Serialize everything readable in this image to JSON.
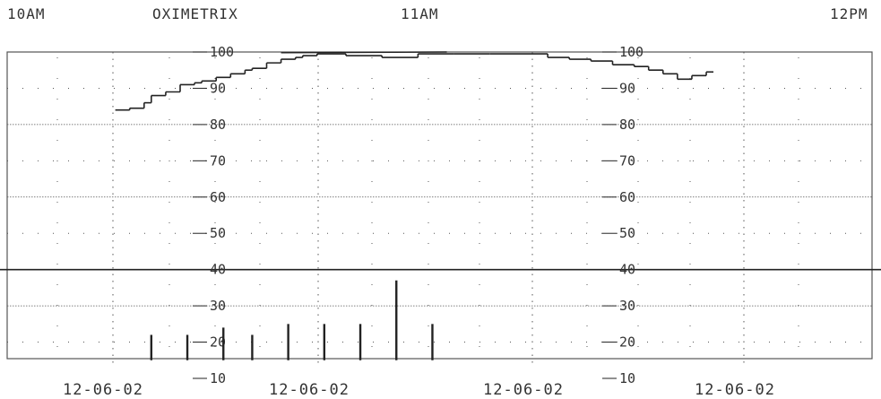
{
  "header": {
    "time_start": "10AM",
    "title": "OXIMETRIX",
    "time_mid": "11AM",
    "time_end": "12PM"
  },
  "dates": [
    "12-06-02",
    "12-06-02",
    "12-06-02",
    "12-06-02"
  ],
  "colors": {
    "line": "#222222",
    "grid": "#555555",
    "background": "#ffffff"
  },
  "chart_data": {
    "type": "line",
    "title": "OXIMETRIX",
    "x_labels_top": [
      "10AM",
      "11AM",
      "12PM"
    ],
    "x_labels_bottom": [
      "12-06-02",
      "12-06-02",
      "12-06-02",
      "12-06-02"
    ],
    "xlim_minutes": [
      0,
      120
    ],
    "yticks": [
      10,
      20,
      30,
      40,
      50,
      60,
      70,
      80,
      90,
      100
    ],
    "ylim": [
      10,
      100
    ],
    "grid": true,
    "series": [
      {
        "type": "step-line",
        "x_minutes": [
          15,
          17,
          19,
          20,
          22,
          24,
          26,
          27,
          29,
          31,
          33,
          34,
          36,
          38,
          40,
          41,
          43,
          47,
          52,
          57,
          62,
          67,
          72,
          75,
          78,
          81,
          84,
          87,
          89,
          91,
          93,
          95,
          97
        ],
        "values": [
          84,
          84.5,
          86,
          88,
          89,
          91,
          91.5,
          92,
          93,
          94,
          95,
          95.5,
          97,
          98,
          98.5,
          99,
          99.5,
          99,
          98.5,
          99.5,
          99.5,
          99.5,
          99.5,
          98.5,
          98,
          97.5,
          96.5,
          96,
          95,
          94,
          92.5,
          93.5,
          94.5
        ]
      },
      {
        "type": "bars",
        "x_minutes": [
          20,
          25,
          30,
          34,
          39,
          44,
          49,
          54,
          59
        ],
        "values": [
          22,
          22,
          24,
          22,
          25,
          25,
          25,
          37,
          25
        ]
      }
    ]
  }
}
